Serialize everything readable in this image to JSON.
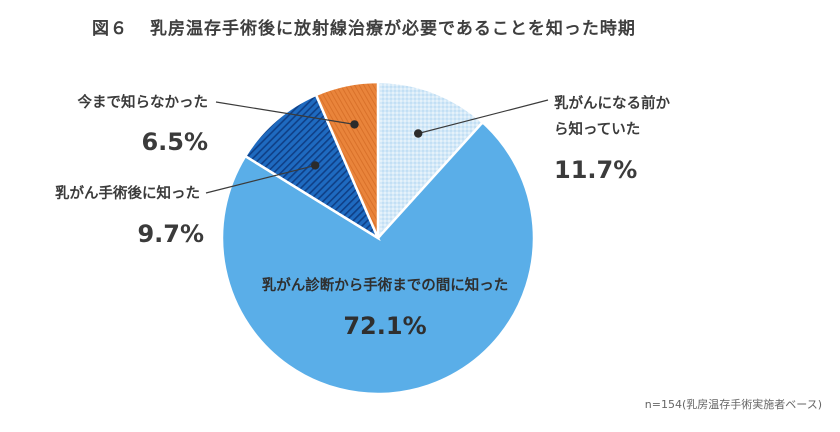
{
  "title": {
    "number": "図６",
    "text": "乳房温存手術後に放射線治療が必要であることを知った時期"
  },
  "note": "n=154(乳房温存手術実施者ベース)",
  "colors": {
    "before_diagnosis": "#cfe6f7",
    "diagnosis_to_surgery": "#5aaee8",
    "after_surgery": "#1f66b8",
    "not_known": "#e8833a"
  },
  "chart_data": {
    "type": "pie",
    "unit": "%",
    "slices": [
      {
        "label_lines": [
          "乳がんになる前か",
          "ら知っていた"
        ],
        "value": 11.7,
        "display": "11.7%"
      },
      {
        "label_lines": [
          "乳がん診断から手術までの間に知った"
        ],
        "value": 72.1,
        "display": "72.1%"
      },
      {
        "label_lines": [
          "乳がん手術後に知った"
        ],
        "value": 9.7,
        "display": "9.7%"
      },
      {
        "label_lines": [
          "今まで知らなかった"
        ],
        "value": 6.5,
        "display": "6.5%"
      }
    ]
  }
}
